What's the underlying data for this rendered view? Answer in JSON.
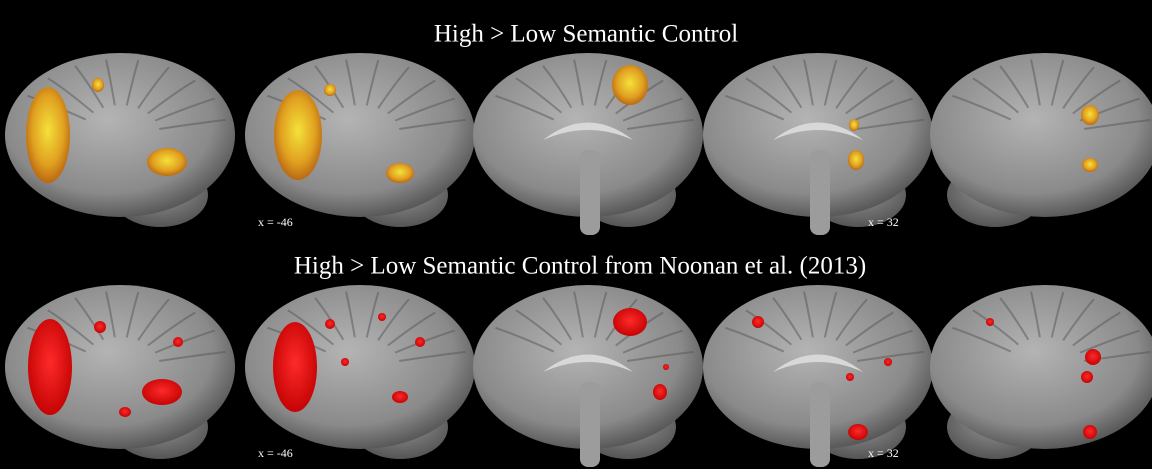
{
  "panels": [
    {
      "title": "High > Low Semantic Control",
      "labels": [
        "x = -46",
        "x = 32"
      ]
    },
    {
      "title": "High > Low Semantic Control from Noonan et al. (2013)",
      "labels": [
        "x = -46",
        "x = 32"
      ]
    }
  ]
}
